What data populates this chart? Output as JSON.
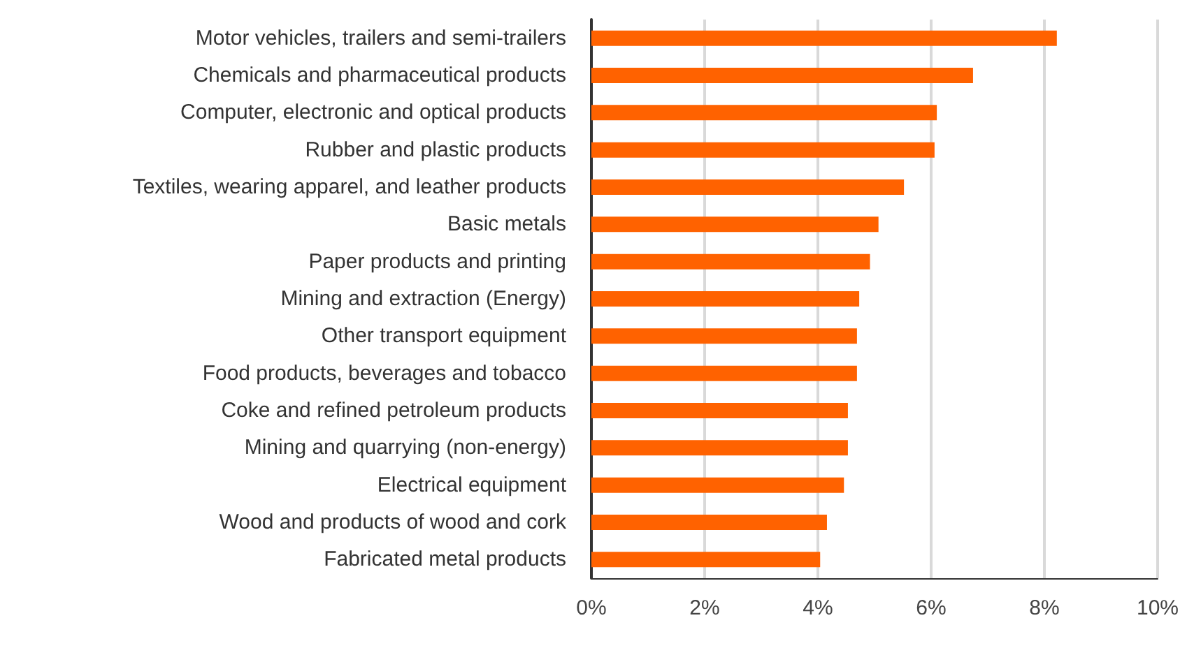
{
  "chart_data": {
    "type": "bar",
    "orientation": "horizontal",
    "categories": [
      "Motor vehicles, trailers and semi-trailers",
      "Chemicals and pharmaceutical products",
      "Computer, electronic and optical products",
      "Rubber and plastic products",
      "Textiles, wearing apparel, and leather products",
      "Basic metals",
      "Paper products and printing",
      "Mining and extraction (Energy)",
      "Other transport equipment",
      "Food products, beverages and tobacco",
      "Coke and refined petroleum products",
      "Mining and quarrying (non-energy)",
      "Electrical equipment",
      "Wood and products of wood and cork",
      "Fabricated metal products"
    ],
    "values": [
      8.22,
      6.74,
      6.1,
      6.06,
      5.52,
      5.07,
      4.92,
      4.73,
      4.69,
      4.69,
      4.53,
      4.53,
      4.46,
      4.16,
      4.04
    ],
    "color": "#ff6200",
    "xlim": [
      0,
      10
    ],
    "xticks": [
      {
        "value": 0,
        "label": "0%"
      },
      {
        "value": 2,
        "label": "2%"
      },
      {
        "value": 4,
        "label": "4%"
      },
      {
        "value": 6,
        "label": "6%"
      },
      {
        "value": 8,
        "label": "8%"
      },
      {
        "value": 10,
        "label": "10%"
      }
    ],
    "grid": "x"
  }
}
